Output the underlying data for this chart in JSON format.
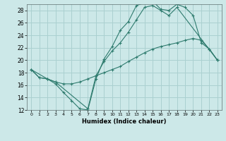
{
  "bg_color": "#cce8e8",
  "grid_color": "#aad0d0",
  "line_color": "#2e7b6e",
  "xlabel": "Humidex (Indice chaleur)",
  "xlim": [
    -0.5,
    23.5
  ],
  "ylim": [
    12,
    29
  ],
  "yticks": [
    12,
    14,
    16,
    18,
    20,
    22,
    24,
    26,
    28
  ],
  "xticks": [
    0,
    1,
    2,
    3,
    4,
    5,
    6,
    7,
    8,
    9,
    10,
    11,
    12,
    13,
    14,
    15,
    16,
    17,
    18,
    19,
    20,
    21,
    22,
    23
  ],
  "series": [
    {
      "x": [
        0,
        1,
        2,
        3,
        4,
        5,
        6,
        7,
        8,
        9,
        10,
        11,
        12,
        13,
        14,
        15,
        16,
        17,
        18,
        19,
        20,
        21,
        22,
        23
      ],
      "y": [
        18.5,
        17.2,
        17.0,
        16.2,
        14.8,
        13.5,
        12.2,
        12.0,
        17.0,
        20.2,
        22.2,
        24.8,
        26.2,
        28.8,
        29.2,
        29.5,
        28.2,
        28.0,
        29.0,
        28.5,
        27.2,
        22.8,
        21.8,
        20.0
      ],
      "markers": [
        0,
        1,
        2,
        3,
        4,
        5,
        6,
        7,
        8,
        9,
        10,
        11,
        12,
        13,
        14,
        15,
        16,
        17,
        18,
        19,
        20,
        21,
        22,
        23
      ]
    },
    {
      "x": [
        0,
        2,
        3,
        7,
        8,
        9,
        10,
        11,
        12,
        13,
        14,
        15,
        16,
        17,
        18,
        23
      ],
      "y": [
        18.5,
        17.0,
        16.5,
        12.2,
        17.5,
        19.8,
        21.5,
        22.8,
        24.5,
        26.5,
        28.5,
        28.8,
        28.0,
        27.2,
        28.5,
        20.0
      ],
      "markers": [
        0,
        2,
        3,
        7,
        8,
        9,
        10,
        11,
        12,
        13,
        14,
        15,
        16,
        17,
        18,
        23
      ]
    },
    {
      "x": [
        0,
        1,
        2,
        3,
        4,
        5,
        6,
        7,
        8,
        9,
        10,
        11,
        12,
        13,
        14,
        15,
        16,
        17,
        18,
        19,
        20,
        21,
        22,
        23
      ],
      "y": [
        18.5,
        17.2,
        17.0,
        16.5,
        16.2,
        16.2,
        16.5,
        17.0,
        17.5,
        18.0,
        18.5,
        19.0,
        19.8,
        20.5,
        21.2,
        21.8,
        22.2,
        22.5,
        22.8,
        23.2,
        23.5,
        23.2,
        21.8,
        20.0
      ],
      "markers": [
        0,
        1,
        2,
        3,
        4,
        5,
        6,
        7,
        8,
        9,
        10,
        11,
        12,
        13,
        14,
        15,
        16,
        17,
        18,
        19,
        20,
        21,
        22,
        23
      ]
    }
  ]
}
